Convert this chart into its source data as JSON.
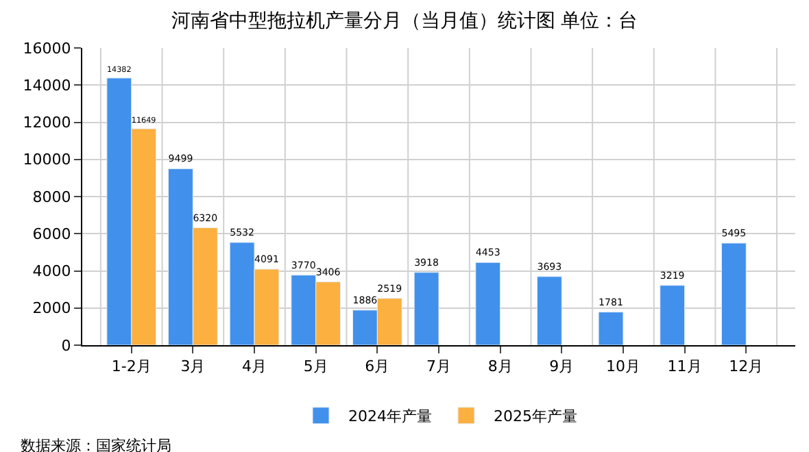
{
  "chart_data": {
    "type": "bar",
    "title": "河南省中型拖拉机产量分月（当月值）统计图 单位：台",
    "categories": [
      "1-2月",
      "3月",
      "4月",
      "5月",
      "6月",
      "7月",
      "8月",
      "9月",
      "10月",
      "11月",
      "12月"
    ],
    "series": [
      {
        "name": "2024年产量",
        "color": "#4190ec",
        "values": [
          14382,
          9499,
          5532,
          3770,
          1886,
          3918,
          4453,
          3693,
          1781,
          3219,
          5495
        ]
      },
      {
        "name": "2025年产量",
        "color": "#fbb040",
        "values": [
          11649,
          6320,
          4091,
          3406,
          2519,
          null,
          null,
          null,
          null,
          null,
          null
        ]
      }
    ],
    "ylim": [
      0,
      16000
    ],
    "yticks": [
      0,
      2000,
      4000,
      6000,
      8000,
      10000,
      12000,
      14000,
      16000
    ],
    "grid": true,
    "legend": "bottom",
    "data_labels": true,
    "annotations": [
      "数据来源：国家统计局"
    ]
  }
}
